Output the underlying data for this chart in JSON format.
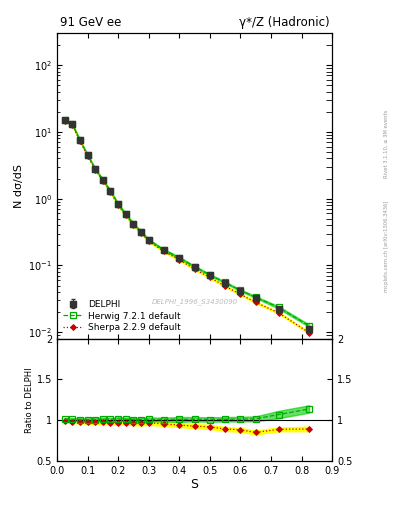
{
  "title_left": "91 GeV ee",
  "title_right": "γ*/Z (Hadronic)",
  "ylabel_main": "N dσ/dS",
  "ylabel_ratio": "Ratio to DELPHI",
  "xlabel": "S",
  "watermark": "DELPHI_1996_S3430090",
  "right_label": "mcplots.cern.ch [arXiv:1306.3436]",
  "right_label2": "Rivet 3.1.10, ≥ 3M events",
  "delphi_x": [
    0.025,
    0.05,
    0.075,
    0.1,
    0.125,
    0.15,
    0.175,
    0.2,
    0.225,
    0.25,
    0.275,
    0.3,
    0.35,
    0.4,
    0.45,
    0.5,
    0.55,
    0.6,
    0.65,
    0.725,
    0.825
  ],
  "delphi_y": [
    15.0,
    13.0,
    7.5,
    4.5,
    2.8,
    1.9,
    1.3,
    0.82,
    0.58,
    0.42,
    0.32,
    0.24,
    0.17,
    0.13,
    0.095,
    0.072,
    0.055,
    0.042,
    0.033,
    0.022,
    0.011
  ],
  "delphi_yerr": [
    0.5,
    0.4,
    0.3,
    0.2,
    0.12,
    0.08,
    0.06,
    0.035,
    0.025,
    0.018,
    0.014,
    0.01,
    0.007,
    0.006,
    0.004,
    0.003,
    0.003,
    0.002,
    0.002,
    0.002,
    0.001
  ],
  "herwig_x": [
    0.025,
    0.05,
    0.075,
    0.1,
    0.125,
    0.15,
    0.175,
    0.2,
    0.225,
    0.25,
    0.275,
    0.3,
    0.35,
    0.4,
    0.45,
    0.5,
    0.55,
    0.6,
    0.65,
    0.725,
    0.825
  ],
  "herwig_y": [
    15.2,
    13.1,
    7.55,
    4.52,
    2.82,
    1.92,
    1.31,
    0.832,
    0.585,
    0.423,
    0.322,
    0.242,
    0.171,
    0.131,
    0.096,
    0.0725,
    0.0555,
    0.0425,
    0.0335,
    0.0235,
    0.0125
  ],
  "herwig_band_lo": [
    15.0,
    12.9,
    7.4,
    4.44,
    2.76,
    1.88,
    1.285,
    0.815,
    0.572,
    0.413,
    0.314,
    0.236,
    0.167,
    0.127,
    0.0935,
    0.0705,
    0.054,
    0.0413,
    0.0325,
    0.0225,
    0.012
  ],
  "herwig_band_hi": [
    15.4,
    13.3,
    7.7,
    4.6,
    2.88,
    1.96,
    1.335,
    0.849,
    0.598,
    0.433,
    0.33,
    0.248,
    0.175,
    0.135,
    0.0985,
    0.0745,
    0.057,
    0.0437,
    0.0345,
    0.0245,
    0.013
  ],
  "sherpa_x": [
    0.025,
    0.05,
    0.075,
    0.1,
    0.125,
    0.15,
    0.175,
    0.2,
    0.225,
    0.25,
    0.275,
    0.3,
    0.35,
    0.4,
    0.45,
    0.5,
    0.55,
    0.6,
    0.65,
    0.725,
    0.825
  ],
  "sherpa_y": [
    14.8,
    12.7,
    7.35,
    4.38,
    2.73,
    1.85,
    1.26,
    0.795,
    0.562,
    0.405,
    0.307,
    0.232,
    0.162,
    0.122,
    0.088,
    0.066,
    0.049,
    0.037,
    0.028,
    0.0195,
    0.0098
  ],
  "sherpa_band_lo": [
    14.6,
    12.5,
    7.22,
    4.3,
    2.67,
    1.81,
    1.232,
    0.776,
    0.548,
    0.394,
    0.299,
    0.226,
    0.158,
    0.119,
    0.0857,
    0.0642,
    0.0477,
    0.036,
    0.0272,
    0.019,
    0.0095
  ],
  "sherpa_band_hi": [
    15.0,
    12.9,
    7.48,
    4.46,
    2.79,
    1.89,
    1.288,
    0.814,
    0.576,
    0.416,
    0.315,
    0.238,
    0.166,
    0.125,
    0.0903,
    0.0678,
    0.0503,
    0.038,
    0.0288,
    0.02,
    0.0101
  ],
  "delphi_color": "#333333",
  "herwig_color": "#00aa00",
  "sherpa_color": "#cc0000",
  "herwig_band_color": "#00cc00",
  "sherpa_band_color": "#ffff00",
  "ylim_main_log": [
    0.008,
    300
  ],
  "ylim_ratio": [
    0.5,
    2.0
  ],
  "xlim": [
    0.0,
    0.9
  ],
  "ratio_yticks": [
    0.5,
    1.0,
    1.5,
    2.0
  ],
  "ratio_yticklabels": [
    "0.5",
    "1",
    "1.5",
    "2"
  ]
}
